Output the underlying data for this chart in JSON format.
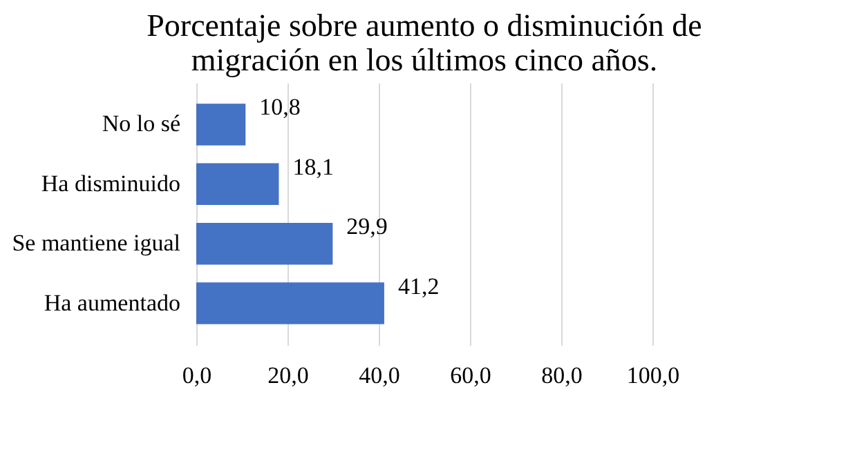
{
  "chart_data": {
    "type": "bar",
    "orientation": "horizontal",
    "title": "Porcentaje sobre aumento o disminución de migración en los últimos cinco años.",
    "categories": [
      "No lo sé",
      "Ha disminuido",
      "Se mantiene igual",
      "Ha aumentado"
    ],
    "values": [
      10.8,
      18.1,
      29.9,
      41.2
    ],
    "value_labels": [
      "10,8",
      "18,1",
      "29,9",
      "41,2"
    ],
    "color": "#4472c4",
    "xlim": [
      0,
      100
    ],
    "xticks": [
      {
        "value": 0,
        "label": "0,0"
      },
      {
        "value": 20,
        "label": "20,0"
      },
      {
        "value": 40,
        "label": "40,0"
      },
      {
        "value": 60,
        "label": "60,0"
      },
      {
        "value": 80,
        "label": "80,0"
      },
      {
        "value": 100,
        "label": "100,0"
      }
    ],
    "grid": "x"
  }
}
